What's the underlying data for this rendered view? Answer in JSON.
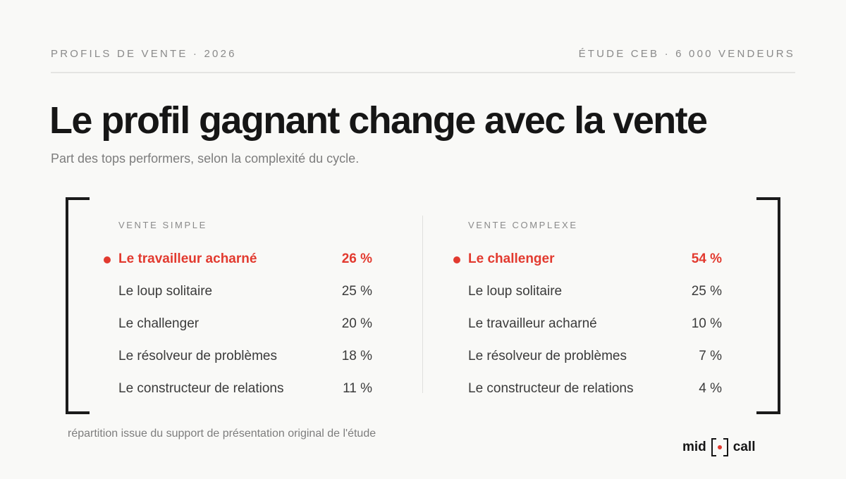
{
  "header": {
    "left": "PROFILS DE VENTE · 2026",
    "right": "ÉTUDE CEB · 6 000 VENDEURS"
  },
  "title": "Le profil gagnant change avec la vente",
  "subtitle": "Part des tops performers, selon la complexité du cycle.",
  "columns": [
    {
      "heading": "VENTE SIMPLE",
      "rows": [
        {
          "label": "Le travailleur acharné",
          "value": "26 %",
          "highlight": true
        },
        {
          "label": "Le loup solitaire",
          "value": "25 %",
          "highlight": false
        },
        {
          "label": "Le challenger",
          "value": "20 %",
          "highlight": false
        },
        {
          "label": "Le résolveur de problèmes",
          "value": "18 %",
          "highlight": false
        },
        {
          "label": "Le constructeur de relations",
          "value": "11 %",
          "highlight": false
        }
      ]
    },
    {
      "heading": "VENTE COMPLEXE",
      "rows": [
        {
          "label": "Le challenger",
          "value": "54 %",
          "highlight": true
        },
        {
          "label": "Le loup solitaire",
          "value": "25 %",
          "highlight": false
        },
        {
          "label": "Le travailleur acharné",
          "value": "10 %",
          "highlight": false
        },
        {
          "label": "Le résolveur de problèmes",
          "value": "7 %",
          "highlight": false
        },
        {
          "label": "Le constructeur de relations",
          "value": "4 %",
          "highlight": false
        }
      ]
    }
  ],
  "footnote": "répartition issue du support de présentation original de l'étude",
  "logo": {
    "left": "mid",
    "right": "call"
  },
  "colors": {
    "accent": "#e23a2f",
    "ink": "#1b1b1b",
    "muted": "#8a8a8a",
    "background": "#f9f9f7"
  }
}
